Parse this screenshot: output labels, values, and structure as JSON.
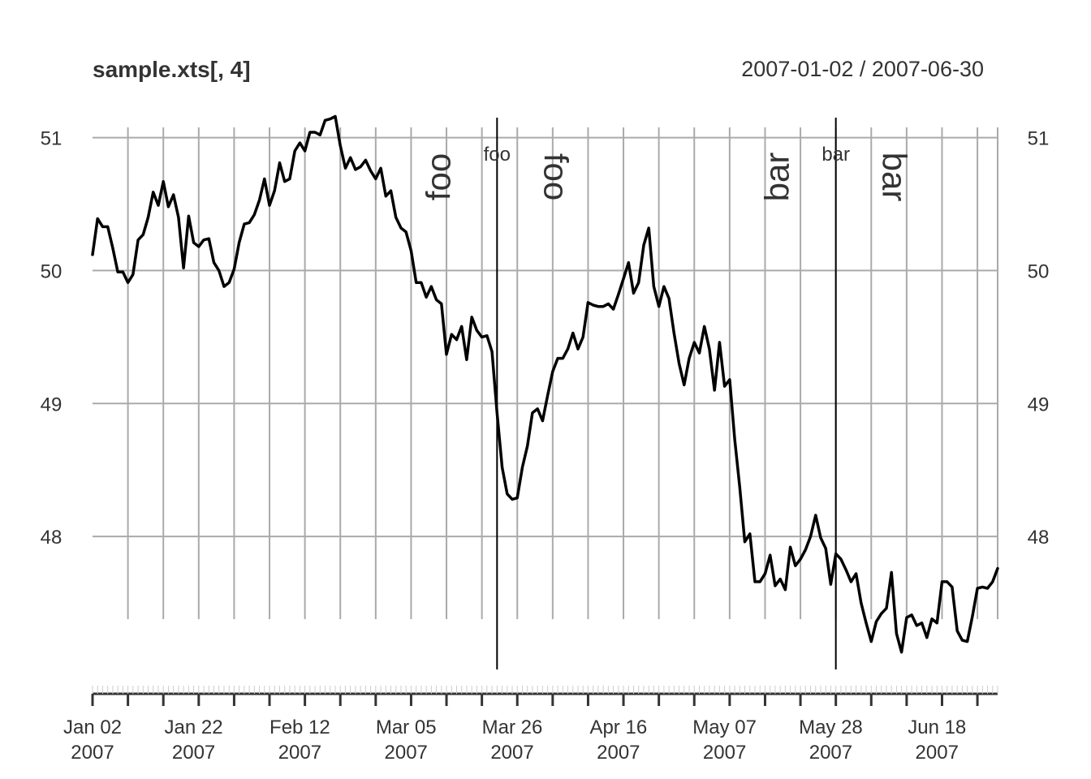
{
  "chart_data": {
    "type": "line",
    "title": "sample.xts[, 4]",
    "date_range": "2007-01-02 / 2007-06-30",
    "grid": true,
    "ylim": [
      47.0,
      51.15
    ],
    "y_ticks": [
      48,
      49,
      50,
      51
    ],
    "y_tick_labels": [
      "48",
      "49",
      "50",
      "51"
    ],
    "x_start": "2007-01-02",
    "x_end": "2007-06-30",
    "x_tick_labels": [
      {
        "date": "2007-01-02",
        "line1": "Jan 02",
        "line2": "2007"
      },
      {
        "date": "2007-01-22",
        "line1": "Jan 22",
        "line2": "2007"
      },
      {
        "date": "2007-02-12",
        "line1": "Feb 12",
        "line2": "2007"
      },
      {
        "date": "2007-03-05",
        "line1": "Mar 05",
        "line2": "2007"
      },
      {
        "date": "2007-03-26",
        "line1": "Mar 26",
        "line2": "2007"
      },
      {
        "date": "2007-04-16",
        "line1": "Apr 16",
        "line2": "2007"
      },
      {
        "date": "2007-05-07",
        "line1": "May 07",
        "line2": "2007"
      },
      {
        "date": "2007-05-28",
        "line1": "May 28",
        "line2": "2007"
      },
      {
        "date": "2007-06-18",
        "line1": "Jun 18",
        "line2": "2007"
      }
    ],
    "events": [
      {
        "date": "2007-03-23",
        "label": "foo"
      },
      {
        "date": "2007-05-29",
        "label": "bar"
      }
    ],
    "series": [
      {
        "x": [
          "2007-01-02",
          "2007-01-03",
          "2007-01-04",
          "2007-01-05",
          "2007-01-06",
          "2007-01-07",
          "2007-01-08",
          "2007-01-09",
          "2007-01-10",
          "2007-01-11",
          "2007-01-12",
          "2007-01-13",
          "2007-01-14",
          "2007-01-15",
          "2007-01-16",
          "2007-01-17",
          "2007-01-18",
          "2007-01-19",
          "2007-01-20",
          "2007-01-21",
          "2007-01-22",
          "2007-01-23",
          "2007-01-24",
          "2007-01-25",
          "2007-01-26",
          "2007-01-27",
          "2007-01-28",
          "2007-01-29",
          "2007-01-30",
          "2007-01-31",
          "2007-02-01",
          "2007-02-02",
          "2007-02-03",
          "2007-02-04",
          "2007-02-05",
          "2007-02-06",
          "2007-02-07",
          "2007-02-08",
          "2007-02-09",
          "2007-02-10",
          "2007-02-11",
          "2007-02-12",
          "2007-02-13",
          "2007-02-14",
          "2007-02-15",
          "2007-02-16",
          "2007-02-17",
          "2007-02-18",
          "2007-02-19",
          "2007-02-20",
          "2007-02-21",
          "2007-02-22",
          "2007-02-23",
          "2007-02-24",
          "2007-02-25",
          "2007-02-26",
          "2007-02-27",
          "2007-02-28",
          "2007-03-01",
          "2007-03-02",
          "2007-03-03",
          "2007-03-04",
          "2007-03-05",
          "2007-03-06",
          "2007-03-07",
          "2007-03-08",
          "2007-03-09",
          "2007-03-10",
          "2007-03-11",
          "2007-03-12",
          "2007-03-13",
          "2007-03-14",
          "2007-03-15",
          "2007-03-16",
          "2007-03-17",
          "2007-03-18",
          "2007-03-19",
          "2007-03-20",
          "2007-03-21",
          "2007-03-22",
          "2007-03-23",
          "2007-03-24",
          "2007-03-25",
          "2007-03-26",
          "2007-03-27",
          "2007-03-28",
          "2007-03-29",
          "2007-03-30",
          "2007-03-31",
          "2007-04-01",
          "2007-04-02",
          "2007-04-03",
          "2007-04-04",
          "2007-04-05",
          "2007-04-06",
          "2007-04-07",
          "2007-04-08",
          "2007-04-09",
          "2007-04-10",
          "2007-04-11",
          "2007-04-12",
          "2007-04-13",
          "2007-04-14",
          "2007-04-15",
          "2007-04-16",
          "2007-04-17",
          "2007-04-18",
          "2007-04-19",
          "2007-04-20",
          "2007-04-21",
          "2007-04-22",
          "2007-04-23",
          "2007-04-24",
          "2007-04-25",
          "2007-04-26",
          "2007-04-27",
          "2007-04-28",
          "2007-04-29",
          "2007-04-30",
          "2007-05-01",
          "2007-05-02",
          "2007-05-03",
          "2007-05-04",
          "2007-05-05",
          "2007-05-06",
          "2007-05-07",
          "2007-05-08",
          "2007-05-09",
          "2007-05-10",
          "2007-05-11",
          "2007-05-12",
          "2007-05-13",
          "2007-05-14",
          "2007-05-15",
          "2007-05-16",
          "2007-05-17",
          "2007-05-18",
          "2007-05-19",
          "2007-05-20",
          "2007-05-21",
          "2007-05-22",
          "2007-05-23",
          "2007-05-24",
          "2007-05-25",
          "2007-05-26",
          "2007-05-27",
          "2007-05-28",
          "2007-05-29",
          "2007-05-30",
          "2007-05-31",
          "2007-06-01",
          "2007-06-02",
          "2007-06-03",
          "2007-06-04",
          "2007-06-05",
          "2007-06-06",
          "2007-06-07",
          "2007-06-08",
          "2007-06-09",
          "2007-06-10",
          "2007-06-11",
          "2007-06-12",
          "2007-06-13",
          "2007-06-14",
          "2007-06-15",
          "2007-06-16",
          "2007-06-17",
          "2007-06-18",
          "2007-06-19",
          "2007-06-20",
          "2007-06-21",
          "2007-06-22",
          "2007-06-23",
          "2007-06-24",
          "2007-06-25",
          "2007-06-26",
          "2007-06-27",
          "2007-06-28",
          "2007-06-29",
          "2007-06-30"
        ],
        "y": [
          50.12,
          50.39,
          50.33,
          50.33,
          50.17,
          49.99,
          49.99,
          49.91,
          49.97,
          50.23,
          50.27,
          50.4,
          50.59,
          50.49,
          50.67,
          50.48,
          50.57,
          50.4,
          50.02,
          50.41,
          50.21,
          50.18,
          50.23,
          50.24,
          50.06,
          50.0,
          49.88,
          49.91,
          50.01,
          50.21,
          50.35,
          50.36,
          50.42,
          50.53,
          50.69,
          50.49,
          50.6,
          50.81,
          50.67,
          50.69,
          50.9,
          50.96,
          50.9,
          51.04,
          51.04,
          51.02,
          51.13,
          51.14,
          51.16,
          50.94,
          50.77,
          50.85,
          50.76,
          50.78,
          50.83,
          50.75,
          50.69,
          50.77,
          50.56,
          50.6,
          50.4,
          50.32,
          50.29,
          50.15,
          49.91,
          49.91,
          49.8,
          49.88,
          49.78,
          49.75,
          49.37,
          49.52,
          49.48,
          49.58,
          49.33,
          49.65,
          49.55,
          49.5,
          49.51,
          49.39,
          48.93,
          48.52,
          48.32,
          48.28,
          48.29,
          48.52,
          48.68,
          48.93,
          48.96,
          48.87,
          49.06,
          49.24,
          49.34,
          49.34,
          49.41,
          49.53,
          49.41,
          49.5,
          49.76,
          49.74,
          49.73,
          49.73,
          49.75,
          49.71,
          49.82,
          49.94,
          50.06,
          49.83,
          49.91,
          50.19,
          50.32,
          49.88,
          49.73,
          49.88,
          49.79,
          49.53,
          49.3,
          49.14,
          49.34,
          49.46,
          49.38,
          49.58,
          49.41,
          49.1,
          49.46,
          49.13,
          49.18,
          48.73,
          48.37,
          47.96,
          48.02,
          47.66,
          47.66,
          47.72,
          47.86,
          47.63,
          47.68,
          47.6,
          47.92,
          47.78,
          47.83,
          47.9,
          48.0,
          48.16,
          47.99,
          47.91,
          47.64,
          47.87,
          47.83,
          47.75,
          47.66,
          47.72,
          47.5,
          47.35,
          47.21,
          47.36,
          47.42,
          47.46,
          47.73,
          47.27,
          47.13,
          47.39,
          47.41,
          47.33,
          47.35,
          47.24,
          47.38,
          47.35,
          47.66,
          47.66,
          47.62,
          47.29,
          47.22,
          47.21,
          47.4,
          47.61,
          47.62,
          47.61,
          47.66,
          47.76
        ]
      }
    ]
  }
}
